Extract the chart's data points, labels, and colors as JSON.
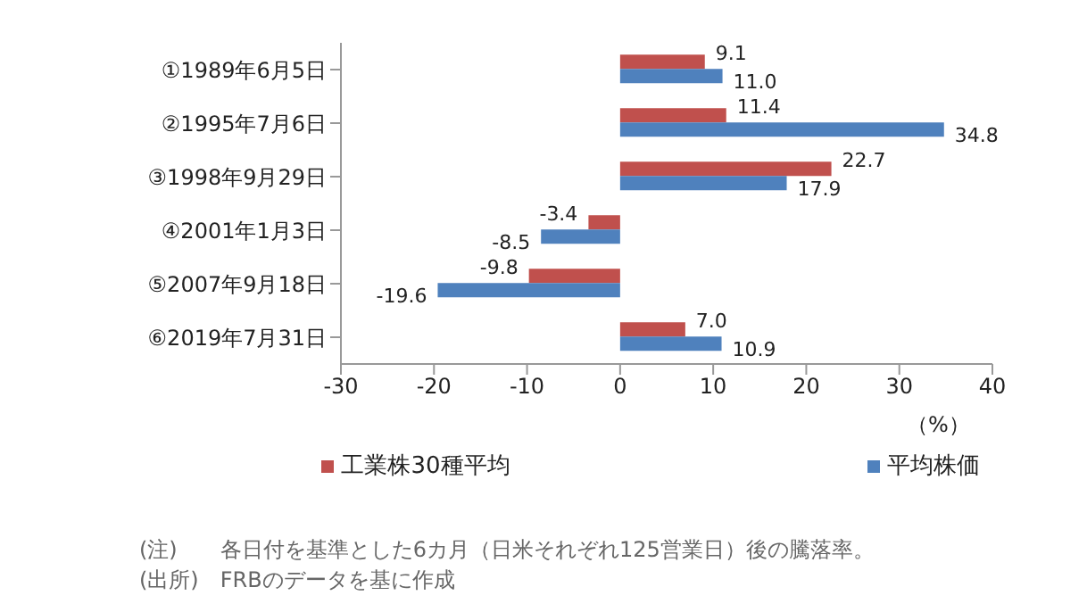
{
  "chart_data": {
    "type": "bar",
    "orientation": "horizontal",
    "categories": [
      "①1989年6月5日",
      "②1995年7月6日",
      "③1998年9月29日",
      "④2001年1月3日",
      "⑤2007年9月18日",
      "⑥2019年7月31日"
    ],
    "series": [
      {
        "name": "工業株30種平均",
        "color": "#c0504d",
        "values": [
          9.1,
          11.4,
          22.7,
          -3.4,
          -9.8,
          7.0
        ],
        "value_labels": [
          "9.1",
          "11.4",
          "22.7",
          "-3.4",
          "-9.8",
          "7.0"
        ]
      },
      {
        "name": "平均株価",
        "color": "#4f81bd",
        "values": [
          11.0,
          34.8,
          17.9,
          -8.5,
          -19.6,
          10.9
        ],
        "value_labels": [
          "11.0",
          "34.8",
          "17.9",
          "-8.5",
          "-19.6",
          "10.9"
        ]
      }
    ],
    "xlim": [
      -30,
      40
    ],
    "xticks": [
      -30,
      -20,
      -10,
      0,
      10,
      20,
      30,
      40
    ],
    "xlabel": "（%）",
    "grid": false,
    "legend": "bottom",
    "annotations": [
      "(注)　　各日付を基準とした6カ月（日米それぞれ125営業日）後の騰落率。",
      "(出所)　FRBのデータを基に作成"
    ]
  }
}
